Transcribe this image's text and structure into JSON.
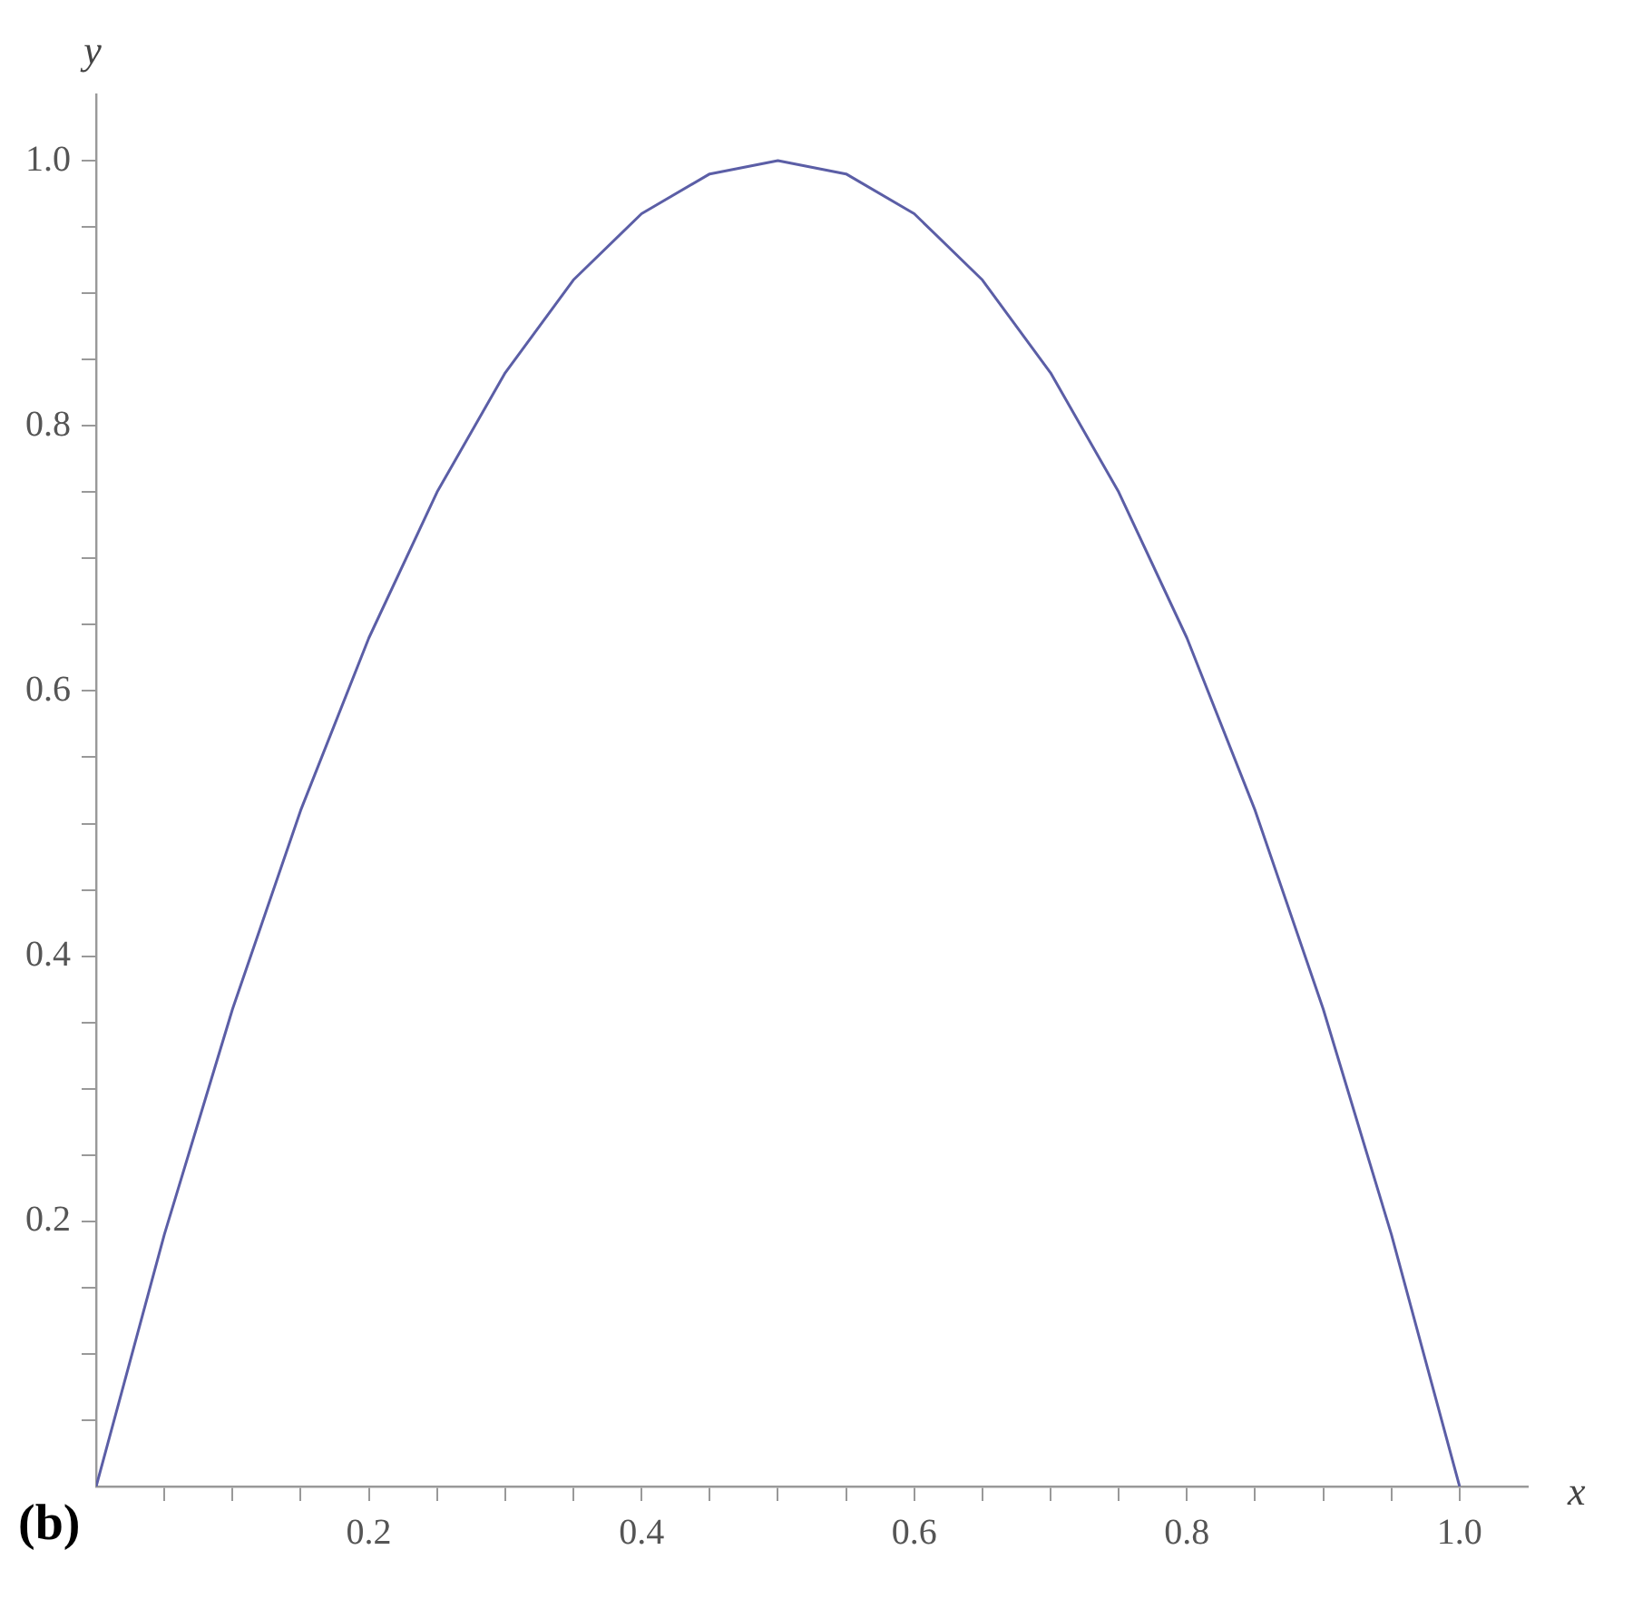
{
  "chart_data": {
    "type": "line",
    "xlabel": "x",
    "ylabel": "y",
    "annotations": [
      "(b)"
    ],
    "xlim": [
      0,
      1.05
    ],
    "ylim": [
      0,
      1.05
    ],
    "xticks": [
      {
        "value": 0.05,
        "label": null
      },
      {
        "value": 0.1,
        "label": null
      },
      {
        "value": 0.15,
        "label": null
      },
      {
        "value": 0.2,
        "label": "0.2"
      },
      {
        "value": 0.25,
        "label": null
      },
      {
        "value": 0.3,
        "label": null
      },
      {
        "value": 0.35,
        "label": null
      },
      {
        "value": 0.4,
        "label": "0.4"
      },
      {
        "value": 0.45,
        "label": null
      },
      {
        "value": 0.5,
        "label": null
      },
      {
        "value": 0.55,
        "label": null
      },
      {
        "value": 0.6,
        "label": "0.6"
      },
      {
        "value": 0.65,
        "label": null
      },
      {
        "value": 0.7,
        "label": null
      },
      {
        "value": 0.75,
        "label": null
      },
      {
        "value": 0.8,
        "label": "0.8"
      },
      {
        "value": 0.85,
        "label": null
      },
      {
        "value": 0.9,
        "label": null
      },
      {
        "value": 0.95,
        "label": null
      },
      {
        "value": 1.0,
        "label": "1.0"
      }
    ],
    "yticks": [
      {
        "value": 0.05,
        "label": null
      },
      {
        "value": 0.1,
        "label": null
      },
      {
        "value": 0.15,
        "label": null
      },
      {
        "value": 0.2,
        "label": "0.2"
      },
      {
        "value": 0.25,
        "label": null
      },
      {
        "value": 0.3,
        "label": null
      },
      {
        "value": 0.35,
        "label": null
      },
      {
        "value": 0.4,
        "label": "0.4"
      },
      {
        "value": 0.45,
        "label": null
      },
      {
        "value": 0.5,
        "label": null
      },
      {
        "value": 0.55,
        "label": null
      },
      {
        "value": 0.6,
        "label": "0.6"
      },
      {
        "value": 0.65,
        "label": null
      },
      {
        "value": 0.7,
        "label": null
      },
      {
        "value": 0.75,
        "label": null
      },
      {
        "value": 0.8,
        "label": "0.8"
      },
      {
        "value": 0.85,
        "label": null
      },
      {
        "value": 0.9,
        "label": null
      },
      {
        "value": 0.95,
        "label": null
      },
      {
        "value": 1.0,
        "label": "1.0"
      }
    ],
    "grid": false,
    "legend": false,
    "marker": "none",
    "line_style": "solid",
    "x": [
      0,
      0.05,
      0.1,
      0.15,
      0.2,
      0.25,
      0.3,
      0.35,
      0.4,
      0.45,
      0.5,
      0.55,
      0.6,
      0.65,
      0.7,
      0.75,
      0.8,
      0.85,
      0.9,
      0.95,
      1.0
    ],
    "series": [
      {
        "color": "#5b5ea6",
        "values": [
          0,
          0.19,
          0.36,
          0.51,
          0.64,
          0.75,
          0.84,
          0.91,
          0.96,
          0.99,
          1.0,
          0.99,
          0.96,
          0.91,
          0.84,
          0.75,
          0.64,
          0.51,
          0.36,
          0.19,
          0
        ]
      }
    ]
  }
}
